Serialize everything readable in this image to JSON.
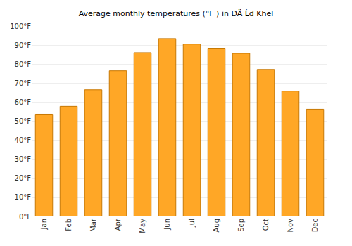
{
  "chart_data": {
    "type": "bar",
    "title": "Average monthly temperatures (°F ) in DÄ Ĺd Khel",
    "categories": [
      "Jan",
      "Feb",
      "Mar",
      "Apr",
      "May",
      "Jun",
      "Jul",
      "Aug",
      "Sep",
      "Oct",
      "Nov",
      "Dec"
    ],
    "values": [
      53.7,
      57.8,
      66.5,
      76.5,
      86.0,
      93.4,
      90.5,
      88.0,
      85.6,
      77.2,
      65.8,
      56.3
    ],
    "color": "#ffa726",
    "ylim": [
      0,
      100
    ],
    "yticks": [
      {
        "value": 0,
        "label": "0°F"
      },
      {
        "value": 10,
        "label": "10°F"
      },
      {
        "value": 20,
        "label": "20°F"
      },
      {
        "value": 30,
        "label": "30°F"
      },
      {
        "value": 40,
        "label": "40°F"
      },
      {
        "value": 50,
        "label": "50°F"
      },
      {
        "value": 60,
        "label": "60°F"
      },
      {
        "value": 70,
        "label": "70°F"
      },
      {
        "value": 80,
        "label": "80°F"
      },
      {
        "value": 90,
        "label": "90°F"
      },
      {
        "value": 100,
        "label": "100°F"
      }
    ],
    "grid": true
  }
}
